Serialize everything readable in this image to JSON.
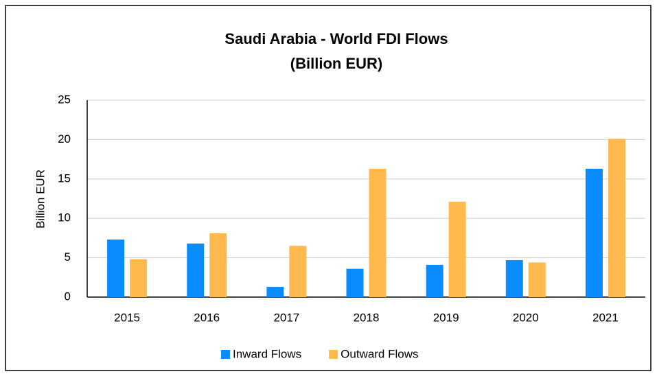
{
  "chart_data": {
    "type": "bar",
    "title": "Saudi Arabia - World FDI Flows",
    "subtitle": "(Billion EUR)",
    "y_label": "Billion EUR",
    "categories": [
      "2015",
      "2016",
      "2017",
      "2018",
      "2019",
      "2020",
      "2021"
    ],
    "series": [
      {
        "name": "Inward Flows",
        "color": "#0a8cff",
        "values": [
          7.3,
          6.8,
          1.3,
          3.6,
          4.1,
          4.7,
          16.3
        ]
      },
      {
        "name": "Outward Flows",
        "color": "#ffb94d",
        "values": [
          4.8,
          8.1,
          6.5,
          16.3,
          12.1,
          4.4,
          20.1
        ]
      }
    ],
    "ylim": [
      0,
      25
    ],
    "yticks": [
      0,
      5,
      10,
      15,
      20,
      25
    ],
    "grid": true,
    "legend": "bottom"
  }
}
